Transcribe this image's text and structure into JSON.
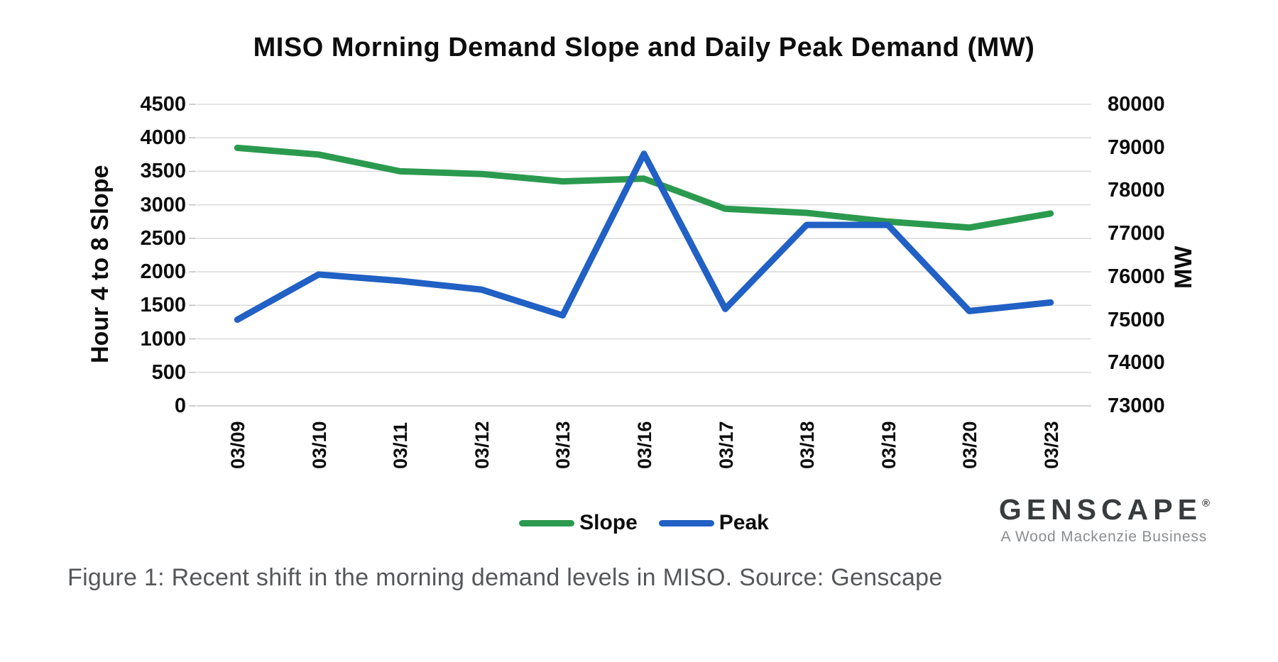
{
  "figure": {
    "caption": "Figure 1: Recent shift in the morning demand levels in MISO. Source: Genscape"
  },
  "logo": {
    "wordmark": "GENSCAPE",
    "registered_mark": "®",
    "tagline": "A Wood Mackenzie Business"
  },
  "legend": {
    "slope_label": "Slope",
    "peak_label": "Peak"
  },
  "chart_data": {
    "type": "line",
    "title": "MISO Morning Demand Slope and Daily Peak Demand (MW)",
    "categories": [
      "03/09",
      "03/10",
      "03/11",
      "03/12",
      "03/13",
      "03/16",
      "03/17",
      "03/18",
      "03/19",
      "03/20",
      "03/23"
    ],
    "series": [
      {
        "name": "Slope",
        "axis": "left",
        "color": "#2b9a4f",
        "values": [
          3850,
          3750,
          3500,
          3460,
          3350,
          3390,
          2940,
          2880,
          2750,
          2660,
          2870
        ]
      },
      {
        "name": "Peak",
        "axis": "right",
        "color": "#2160c4",
        "values": [
          75000,
          76050,
          75900,
          75700,
          75100,
          78850,
          75250,
          77200,
          77200,
          75200,
          75400
        ]
      }
    ],
    "left_axis": {
      "label": "Hour 4 to 8 Slope",
      "min": 0,
      "max": 4500,
      "step": 500,
      "ticks": [
        "4500",
        "4000",
        "3500",
        "3000",
        "2500",
        "2000",
        "1500",
        "1000",
        "500",
        "0"
      ]
    },
    "right_axis": {
      "label": "MW",
      "min": 73000,
      "max": 80000,
      "step": 1000,
      "ticks": [
        "80000",
        "79000",
        "78000",
        "77000",
        "76000",
        "75000",
        "74000",
        "73000"
      ]
    },
    "grid": true,
    "legend_position": "bottom"
  }
}
